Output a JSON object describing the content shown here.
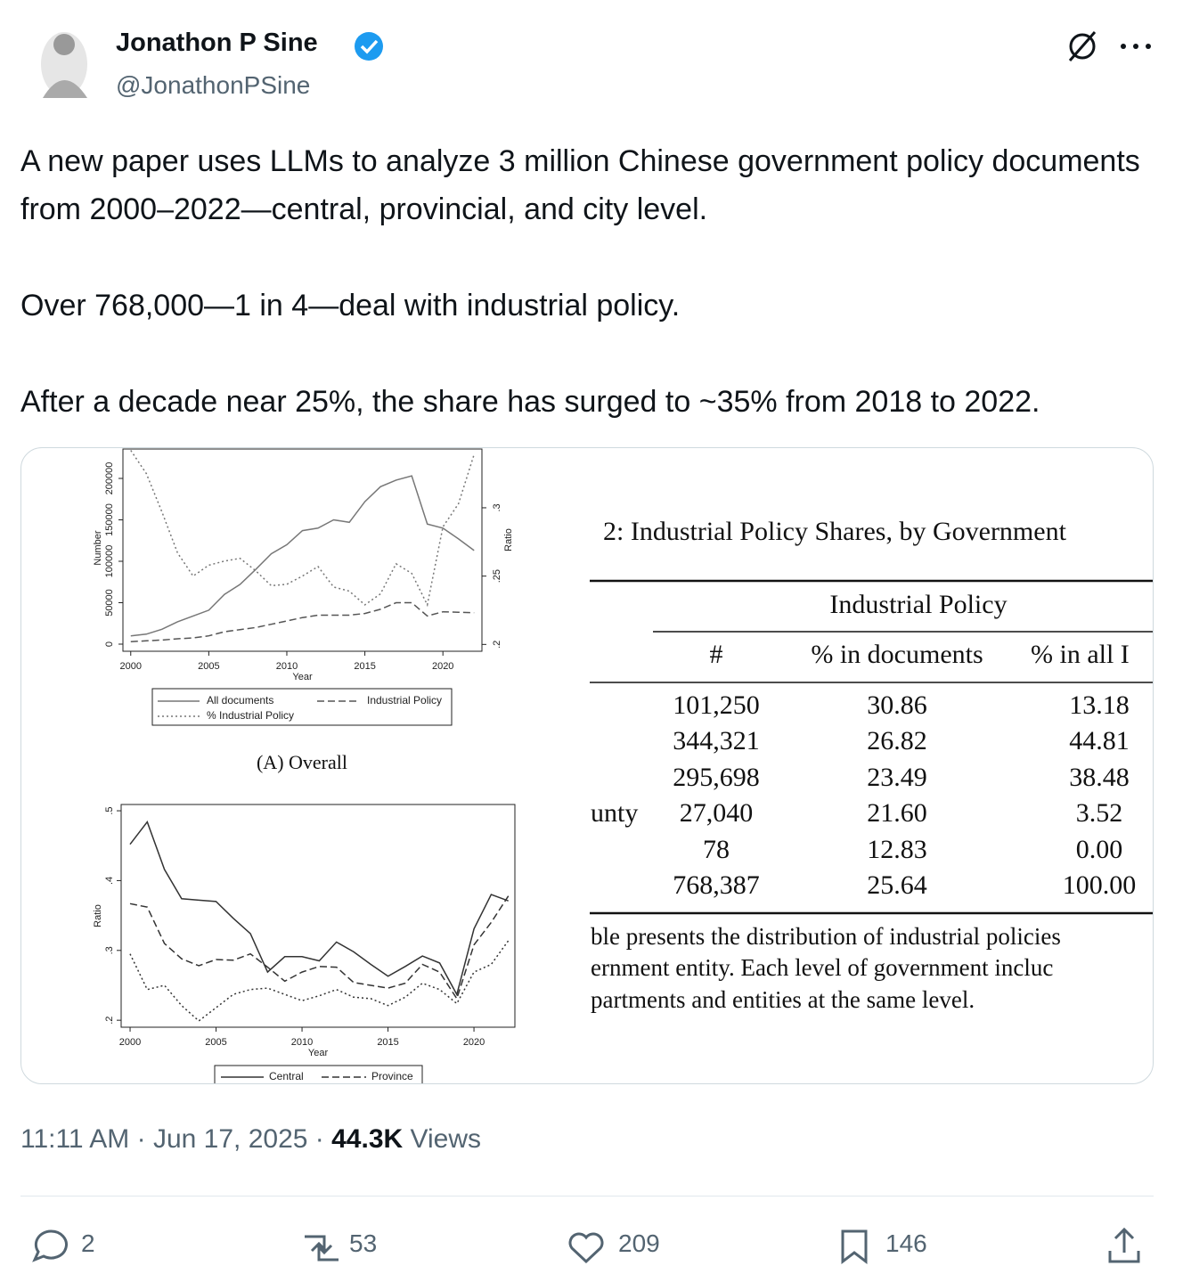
{
  "tweet": {
    "author": {
      "name": "Jonathon P Sine",
      "handle": "@JonathonPSine"
    },
    "text": [
      "A new paper uses LLMs to analyze 3 million Chinese government policy documents from 2000–2022—central, provincial, and city level.",
      "Over 768,000—1 in 4—deal with industrial policy.",
      "After a decade near 25%, the share has surged to ~35% from 2018 to 2022."
    ],
    "timestamp": "11:11 AM · Jun 17, 2025 ·",
    "views": "44.3K",
    "views_label": "Views",
    "stats": {
      "replies": 2,
      "retweets": 53,
      "likes": 209,
      "bookmarks": 146
    }
  },
  "media": {
    "charts": [
      {
        "type": "line",
        "caption": "(A) Overall",
        "xlabel": "Year",
        "ylabel": "Number",
        "y2label": "Ratio",
        "x": [
          2000,
          2001,
          2002,
          2003,
          2004,
          2005,
          2006,
          2007,
          2008,
          2009,
          2010,
          2011,
          2012,
          2013,
          2014,
          2015,
          2016,
          2017,
          2018,
          2019,
          2020,
          2021,
          2022
        ],
        "xlim": [
          1999.5,
          2022.5
        ],
        "xticks": [
          2000,
          2005,
          2010,
          2015,
          2020
        ],
        "ylim": [
          -8600,
          235500
        ],
        "yticks": [
          0,
          50000,
          100000,
          150000,
          200000
        ],
        "y2lim": [
          0.195,
          0.343
        ],
        "y2ticks": [
          {
            "value": 0.2,
            "label": ".2"
          },
          {
            "value": 0.25,
            "label": ".25"
          },
          {
            "value": 0.3,
            "label": ".3"
          }
        ],
        "legend": "bottom",
        "series": [
          {
            "name": "All documents",
            "color": "#777777",
            "dash": "solid",
            "values": [
              10000,
              12000,
              18000,
              27000,
              34000,
              41000,
              60000,
              72000,
              90000,
              109000,
              120000,
              137000,
              140000,
              150000,
              147000,
              172000,
              190000,
              198000,
              203000,
              145000,
              140000,
              127000,
              113000
            ]
          },
          {
            "name": "Industrial Policy",
            "color": "#555555",
            "dash": "dashed",
            "values": [
              3000,
              4000,
              5000,
              6500,
              7500,
              10000,
              15000,
              17500,
              20000,
              24000,
              28000,
              32000,
              35000,
              35000,
              35000,
              37000,
              42000,
              50000,
              50000,
              34000,
              39000,
              38500,
              38000
            ]
          },
          {
            "name": "% Industrial Policy",
            "color": "#777777",
            "dash": "dotted",
            "axis": "y2",
            "values": [
              0.342,
              0.325,
              0.297,
              0.267,
              0.25,
              0.258,
              0.261,
              0.263,
              0.254,
              0.243,
              0.244,
              0.25,
              0.257,
              0.242,
              0.239,
              0.229,
              0.237,
              0.259,
              0.252,
              0.229,
              0.286,
              0.303,
              0.339
            ]
          }
        ]
      },
      {
        "type": "line",
        "xlabel": "Year",
        "ylabel": "Ratio",
        "x": [
          2000,
          2001,
          2002,
          2003,
          2004,
          2005,
          2006,
          2007,
          2008,
          2009,
          2010,
          2011,
          2012,
          2013,
          2014,
          2015,
          2016,
          2017,
          2018,
          2019,
          2020,
          2021,
          2022
        ],
        "xlim": [
          1999.48,
          2022.38
        ],
        "xticks": [
          2000,
          2005,
          2010,
          2015,
          2020
        ],
        "ylim": [
          0.19,
          0.509
        ],
        "yticks": [
          {
            "value": 0.2,
            "label": ".2"
          },
          {
            "value": 0.3,
            "label": ".3"
          },
          {
            "value": 0.4,
            "label": ".4"
          },
          {
            "value": 0.5,
            "label": ".5"
          }
        ],
        "legend": "bottom",
        "series": [
          {
            "name": "Central",
            "color": "#333333",
            "dash": "solid",
            "values": [
              0.452,
              0.484,
              0.416,
              0.374,
              0.372,
              0.37,
              0.346,
              0.324,
              0.269,
              0.291,
              0.291,
              0.285,
              0.312,
              0.298,
              0.28,
              0.263,
              0.277,
              0.292,
              0.282,
              0.237,
              0.331,
              0.38,
              0.371
            ]
          },
          {
            "name": "Province",
            "color": "#333333",
            "dash": "dashed",
            "values": [
              0.367,
              0.362,
              0.31,
              0.288,
              0.278,
              0.287,
              0.286,
              0.295,
              0.276,
              0.256,
              0.269,
              0.277,
              0.276,
              0.254,
              0.25,
              0.246,
              0.253,
              0.28,
              0.269,
              0.231,
              0.308,
              0.34,
              0.378
            ]
          },
          {
            "color": "#333333",
            "dash": "dotted",
            "values": [
              0.295,
              0.244,
              0.25,
              0.221,
              0.199,
              0.218,
              0.237,
              0.244,
              0.246,
              0.237,
              0.228,
              0.235,
              0.244,
              0.233,
              0.231,
              0.221,
              0.233,
              0.253,
              0.244,
              0.224,
              0.269,
              0.28,
              0.314
            ]
          }
        ]
      }
    ],
    "table": {
      "caption": "2: Industrial Policy Shares, by Government",
      "group_header": "Industrial Policy",
      "columns": [
        "#",
        "% in documents",
        "% in all I"
      ],
      "rows": [
        {
          "cells": [
            "101,250",
            "30.86",
            "13.18"
          ]
        },
        {
          "cells": [
            "344,321",
            "26.82",
            "44.81"
          ]
        },
        {
          "cells": [
            "295,698",
            "23.49",
            "38.48"
          ]
        },
        {
          "label": "unty",
          "cells": [
            "27,040",
            "21.60",
            "3.52"
          ]
        },
        {
          "cells": [
            "78",
            "12.83",
            "0.00"
          ]
        },
        {
          "cells": [
            "768,387",
            "25.64",
            "100.00"
          ]
        }
      ],
      "notes": [
        "ble presents the distribution of industrial policies",
        "ernment entity.  Each level of government incluc",
        "partments and entities at the same level."
      ]
    }
  }
}
